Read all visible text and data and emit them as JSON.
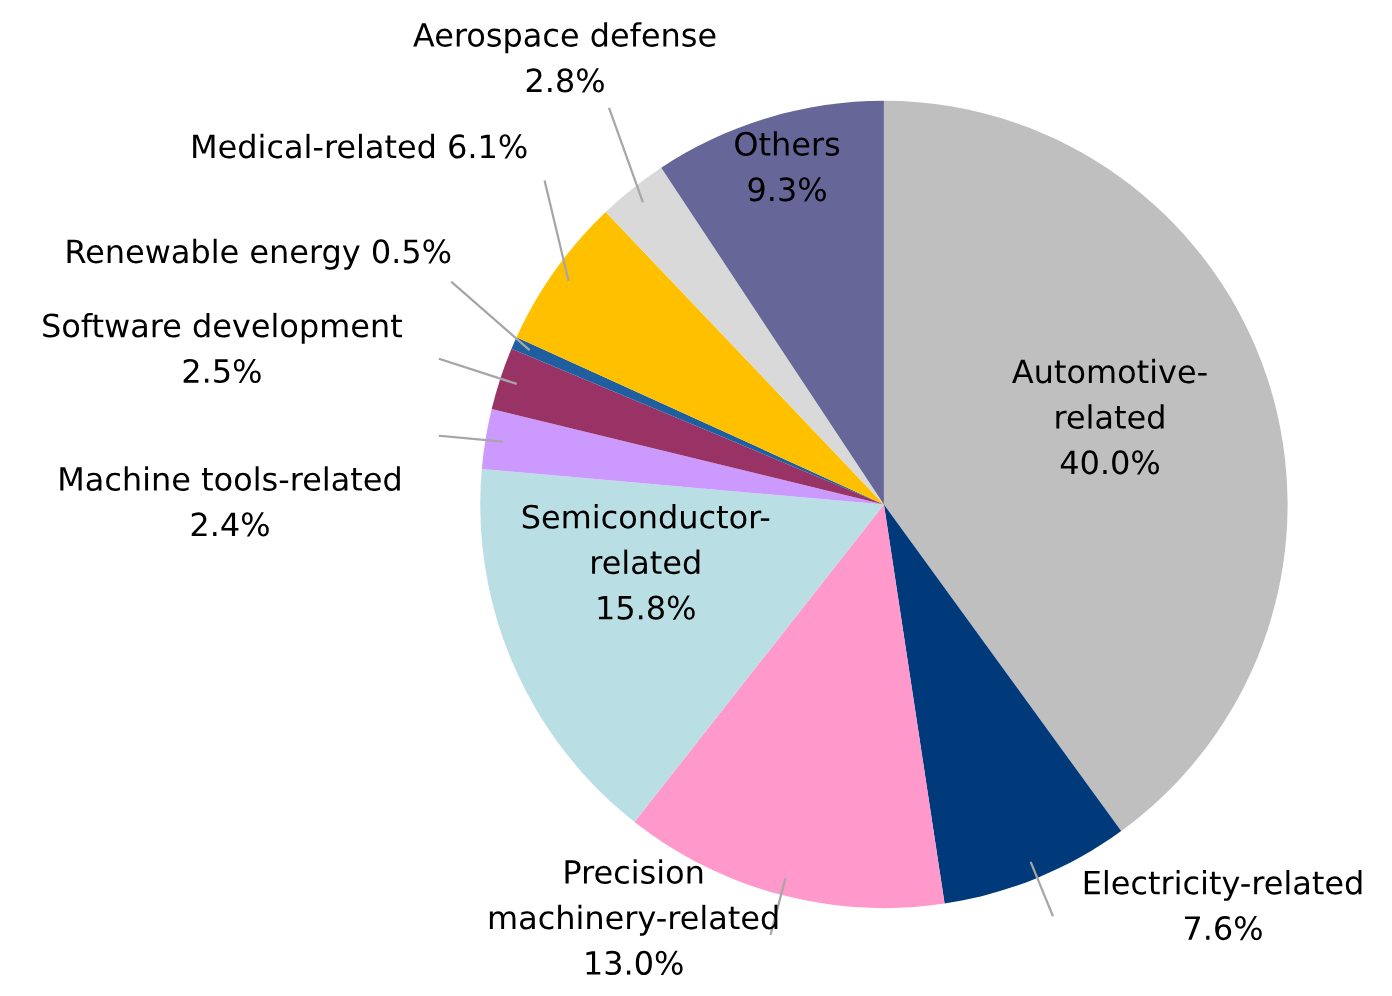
{
  "chart_data": {
    "type": "pie",
    "categories": [
      "Automotive-related",
      "Electricity-related",
      "Precision machinery-related",
      "Semiconductor-related",
      "Machine tools-related",
      "Software development",
      "Renewable energy",
      "Medical-related",
      "Aerospace defense",
      "Others"
    ],
    "values": [
      40.0,
      7.6,
      13.0,
      15.8,
      2.4,
      2.5,
      0.5,
      6.1,
      2.8,
      9.3
    ],
    "colors": [
      "#bfbfbf",
      "#003a7a",
      "#ff99cc",
      "#b9dfe4",
      "#cc99ff",
      "#993366",
      "#1f5f9f",
      "#ffc000",
      "#d9d9d9",
      "#666699"
    ],
    "value_labels": [
      "40.0%",
      "7.6%",
      "13.0%",
      "15.8%",
      "2.4%",
      "2.5%",
      "0.5%",
      "6.1%",
      "2.8%",
      "9.3%"
    ]
  }
}
